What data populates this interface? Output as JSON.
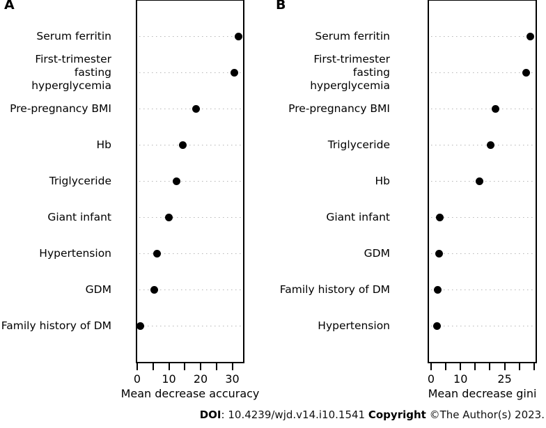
{
  "figure_title": "Variable importance dot plots",
  "colors": {
    "point": "#000000",
    "dotted_line": "#b5b5b5",
    "text": "#000000",
    "background": "#ffffff"
  },
  "chart_data": [
    {
      "type": "scatter",
      "variant": "cleveland-dot-plot",
      "title": "A",
      "categories": [
        "Serum ferritin",
        "First-trimester\nfasting hyperglycemia",
        "Pre-pregnancy BMI",
        "Hb",
        "Triglyceride",
        "Giant infant",
        "Hypertension",
        "GDM",
        "Family history of DM"
      ],
      "values": [
        32.0,
        30.7,
        18.5,
        14.3,
        12.4,
        10.0,
        6.3,
        5.3,
        0.9
      ],
      "xlabel": "Mean decrease accuracy",
      "xlim": [
        0,
        33.4
      ],
      "xticks": [
        0,
        5,
        10,
        15,
        20,
        25,
        30
      ],
      "xtick_labels": [
        "0",
        "",
        "10",
        "",
        "20",
        "",
        "30"
      ],
      "grid": "dotted-horizontal",
      "legend": "none"
    },
    {
      "type": "scatter",
      "variant": "cleveland-dot-plot",
      "title": "B",
      "categories": [
        "Serum ferritin",
        "First-trimester\nfasting hyperglycemia",
        "Pre-pregnancy BMI",
        "Triglyceride",
        "Hb",
        "Giant infant",
        "GDM",
        "Family history of DM",
        "Hypertension"
      ],
      "values": [
        33.8,
        32.3,
        22.0,
        20.3,
        16.4,
        2.9,
        2.8,
        2.3,
        2.1
      ],
      "xlabel": "Mean decrease gini",
      "xlim": [
        -0.7,
        35.5
      ],
      "xticks": [
        0,
        5,
        10,
        15,
        20,
        25,
        30,
        35
      ],
      "xtick_labels": [
        "0",
        "",
        "10",
        "",
        "",
        "25",
        "",
        ""
      ],
      "grid": "dotted-horizontal",
      "legend": "none"
    }
  ],
  "footer": {
    "doi_label": "DOI",
    "doi_rest": ": 10.4239/wjd.v14.i10.1541 ",
    "copyright_label": "Copyright",
    "copyright_rest": " ©The Author(s) 2023."
  }
}
